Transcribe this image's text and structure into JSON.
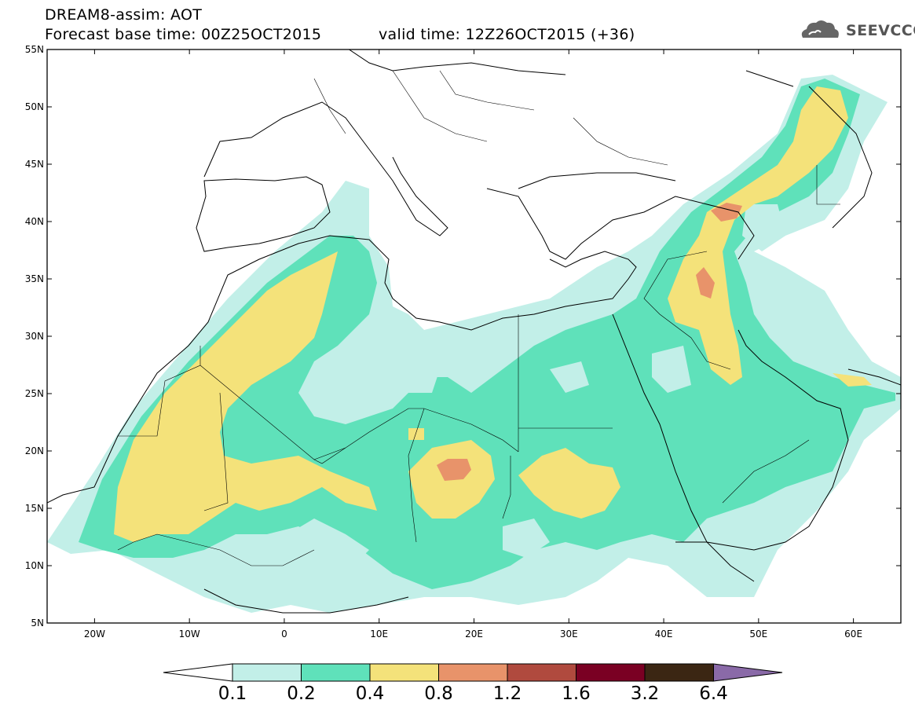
{
  "title": {
    "line1": "DREAM8-assim: AOT",
    "line2": "Forecast base time: 00Z25OCT2015",
    "valid": "valid time: 12Z26OCT2015 (+36)"
  },
  "logo": {
    "text": "SEEVCCC",
    "icon": "cloud-icon"
  },
  "map": {
    "variable": "AOT",
    "lon_range": [
      -25,
      65
    ],
    "lat_range": [
      5,
      55
    ],
    "lat_ticks": [
      "55N",
      "50N",
      "45N",
      "40N",
      "35N",
      "30N",
      "25N",
      "20N",
      "15N",
      "10N",
      "5N"
    ],
    "lon_ticks": [
      "20W",
      "10W",
      "0",
      "10E",
      "20E",
      "30E",
      "40E",
      "50E",
      "60E"
    ]
  },
  "colorbar": {
    "colors": [
      "#c2efe8",
      "#5fe1ba",
      "#f4e27a",
      "#e8936a",
      "#b04a3e",
      "#7a0023",
      "#3b2613",
      "#8a6aa8"
    ],
    "labels": [
      "0.1",
      "0.2",
      "0.4",
      "0.8",
      "1.2",
      "1.6",
      "3.2",
      "6.4"
    ]
  }
}
